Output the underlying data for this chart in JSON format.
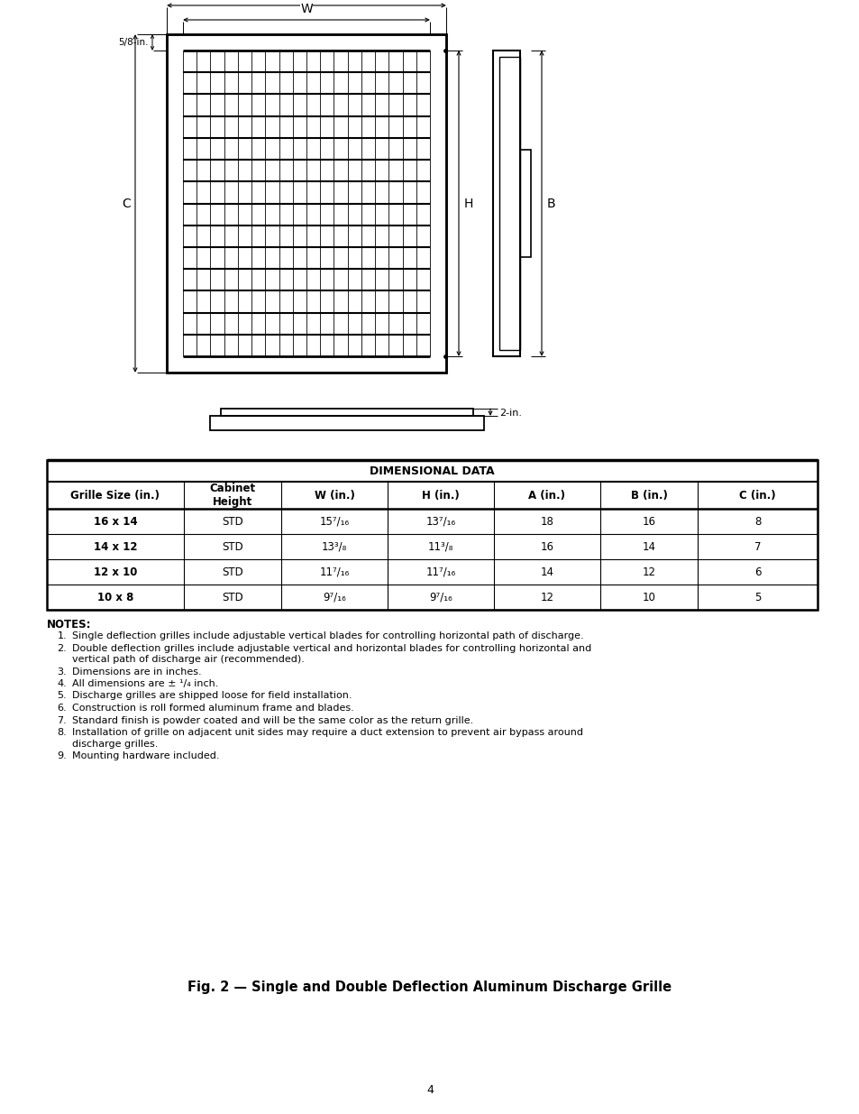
{
  "bg_color": "#ffffff",
  "page_number": "4",
  "fig_caption": "Fig. 2 — Single and Double Deflection Aluminum Discharge Grille",
  "table_title": "DIMENSIONAL DATA",
  "table_headers": [
    "Grille Size (in.)",
    "Cabinet\nHeight",
    "W (in.)",
    "H (in.)",
    "A (in.)",
    "B (in.)",
    "C (in.)"
  ],
  "table_rows_text": [
    [
      "16 x 14",
      "STD",
      "15⁷/₁₆",
      "13⁷/₁₆",
      "18",
      "16",
      "8"
    ],
    [
      "14 x 12",
      "STD",
      "13³/₈",
      "11³/₈",
      "16",
      "14",
      "7"
    ],
    [
      "12 x 10",
      "STD",
      "11⁷/₁₆",
      "11⁷/₁₆",
      "14",
      "12",
      "6"
    ],
    [
      "10 x 8",
      "STD",
      "9⁷/₁₆",
      "9⁷/₁₆",
      "12",
      "10",
      "5"
    ]
  ],
  "notes_title": "NOTES:",
  "notes": [
    "Single deflection grilles include adjustable vertical blades for controlling horizontal path of discharge.",
    "Double deflection grilles include adjustable vertical and horizontal blades for controlling horizontal and vertical path of discharge air (recommended).",
    "Dimensions are in inches.",
    "All dimensions are ± ¹/₄ inch.",
    "Discharge grilles are shipped loose for field installation.",
    "Construction is roll formed aluminum frame and blades.",
    "Standard finish is powder coated and will be the same color as the return grille.",
    "Installation of grille on adjacent unit sides may require a duct extension to prevent air bypass around discharge grilles.",
    "Mounting hardware included."
  ]
}
